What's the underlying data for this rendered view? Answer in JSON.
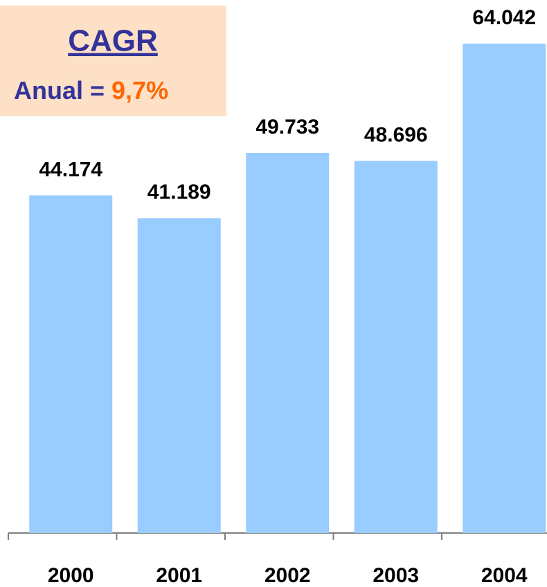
{
  "chart_data": {
    "type": "bar",
    "categories": [
      "2000",
      "2001",
      "2002",
      "2003",
      "2004"
    ],
    "values": [
      44174,
      41189,
      49733,
      48696,
      64042
    ],
    "value_labels": [
      "44.174",
      "41.189",
      "49.733",
      "48.696",
      "64.042"
    ],
    "color": "#99ccff",
    "annotation": {
      "title": "CAGR",
      "label": "Anual =",
      "value": "9,7%"
    }
  }
}
